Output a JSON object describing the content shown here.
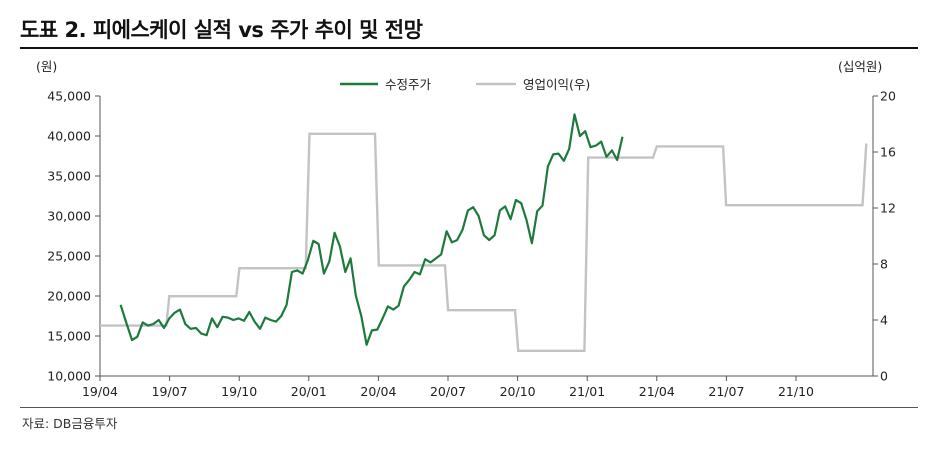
{
  "header": {
    "title": "도표 2. 피에스케이 실적 vs 주가 추이 및 전망"
  },
  "units": {
    "left": "(원)",
    "right": "(십억원)"
  },
  "source": "자료: DB금융투자",
  "colors": {
    "price": "#1e7a3c",
    "op": "#c3c3c3",
    "axis": "#555555"
  },
  "chart_data": {
    "type": "line",
    "x_ticks": [
      "19/04",
      "19/07",
      "19/10",
      "20/01",
      "20/04",
      "20/07",
      "20/10",
      "21/01",
      "21/04",
      "21/07",
      "21/10"
    ],
    "y_left": {
      "min": 10000,
      "max": 45000,
      "step": 5000,
      "ticks": [
        "10,000",
        "15,000",
        "20,000",
        "25,000",
        "30,000",
        "35,000",
        "40,000",
        "45,000"
      ]
    },
    "y_right": {
      "min": 0,
      "max": 20,
      "step": 4,
      "ticks": [
        "0",
        "4",
        "8",
        "12",
        "16",
        "20"
      ]
    },
    "series": [
      {
        "name": "수정주가",
        "axis": "left",
        "points": [
          [
            "2019-04-28",
            18900
          ],
          [
            "2019-05-06",
            16500
          ],
          [
            "2019-05-13",
            14500
          ],
          [
            "2019-05-20",
            14900
          ],
          [
            "2019-05-27",
            16700
          ],
          [
            "2019-06-03",
            16300
          ],
          [
            "2019-06-10",
            16500
          ],
          [
            "2019-06-17",
            17000
          ],
          [
            "2019-06-24",
            16000
          ],
          [
            "2019-07-01",
            17200
          ],
          [
            "2019-07-08",
            17900
          ],
          [
            "2019-07-15",
            18300
          ],
          [
            "2019-07-22",
            16500
          ],
          [
            "2019-07-29",
            15900
          ],
          [
            "2019-08-05",
            16000
          ],
          [
            "2019-08-12",
            15300
          ],
          [
            "2019-08-19",
            15100
          ],
          [
            "2019-08-26",
            17200
          ],
          [
            "2019-09-02",
            16100
          ],
          [
            "2019-09-09",
            17400
          ],
          [
            "2019-09-16",
            17300
          ],
          [
            "2019-09-23",
            17000
          ],
          [
            "2019-09-30",
            17200
          ],
          [
            "2019-10-07",
            16900
          ],
          [
            "2019-10-14",
            18000
          ],
          [
            "2019-10-21",
            16800
          ],
          [
            "2019-10-28",
            15900
          ],
          [
            "2019-11-04",
            17300
          ],
          [
            "2019-11-11",
            17000
          ],
          [
            "2019-11-18",
            16800
          ],
          [
            "2019-11-25",
            17500
          ],
          [
            "2019-12-02",
            18900
          ],
          [
            "2019-12-09",
            23000
          ],
          [
            "2019-12-16",
            23200
          ],
          [
            "2019-12-23",
            22800
          ],
          [
            "2019-12-30",
            24500
          ],
          [
            "2020-01-06",
            26900
          ],
          [
            "2020-01-13",
            26500
          ],
          [
            "2020-01-20",
            22800
          ],
          [
            "2020-01-27",
            24300
          ],
          [
            "2020-02-03",
            27900
          ],
          [
            "2020-02-10",
            26200
          ],
          [
            "2020-02-17",
            23000
          ],
          [
            "2020-02-24",
            24700
          ],
          [
            "2020-03-02",
            20000
          ],
          [
            "2020-03-09",
            17500
          ],
          [
            "2020-03-16",
            13900
          ],
          [
            "2020-03-23",
            15700
          ],
          [
            "2020-03-30",
            15800
          ],
          [
            "2020-04-06",
            17200
          ],
          [
            "2020-04-13",
            18700
          ],
          [
            "2020-04-20",
            18300
          ],
          [
            "2020-04-27",
            18800
          ],
          [
            "2020-05-04",
            21200
          ],
          [
            "2020-05-11",
            22000
          ],
          [
            "2020-05-18",
            23000
          ],
          [
            "2020-05-25",
            22700
          ],
          [
            "2020-06-01",
            24600
          ],
          [
            "2020-06-08",
            24200
          ],
          [
            "2020-06-15",
            24700
          ],
          [
            "2020-06-22",
            25200
          ],
          [
            "2020-06-29",
            28100
          ],
          [
            "2020-07-06",
            26700
          ],
          [
            "2020-07-13",
            27000
          ],
          [
            "2020-07-20",
            28300
          ],
          [
            "2020-07-27",
            30700
          ],
          [
            "2020-08-03",
            31100
          ],
          [
            "2020-08-10",
            30000
          ],
          [
            "2020-08-17",
            27600
          ],
          [
            "2020-08-24",
            27000
          ],
          [
            "2020-08-31",
            27600
          ],
          [
            "2020-09-07",
            30700
          ],
          [
            "2020-09-14",
            31200
          ],
          [
            "2020-09-21",
            29600
          ],
          [
            "2020-09-28",
            32000
          ],
          [
            "2020-10-05",
            31600
          ],
          [
            "2020-10-12",
            29500
          ],
          [
            "2020-10-19",
            26600
          ],
          [
            "2020-10-26",
            30600
          ],
          [
            "2020-11-02",
            31300
          ],
          [
            "2020-11-09",
            36200
          ],
          [
            "2020-11-16",
            37700
          ],
          [
            "2020-11-23",
            37800
          ],
          [
            "2020-11-30",
            36900
          ],
          [
            "2020-12-07",
            38400
          ],
          [
            "2020-12-14",
            42700
          ],
          [
            "2020-12-21",
            40000
          ],
          [
            "2020-12-28",
            40600
          ],
          [
            "2021-01-04",
            38600
          ],
          [
            "2021-01-11",
            38800
          ],
          [
            "2021-01-18",
            39300
          ],
          [
            "2021-01-25",
            37400
          ],
          [
            "2021-02-01",
            38200
          ],
          [
            "2021-02-08",
            37000
          ],
          [
            "2021-02-15",
            39900
          ]
        ]
      },
      {
        "name": "영업이익(우)",
        "axis": "right",
        "points": [
          [
            "2019-04-01",
            3.6
          ],
          [
            "2019-06-27",
            3.6
          ],
          [
            "2019-07-01",
            5.7
          ],
          [
            "2019-09-27",
            5.7
          ],
          [
            "2019-10-01",
            7.7
          ],
          [
            "2019-12-27",
            7.7
          ],
          [
            "2020-01-01",
            17.3
          ],
          [
            "2020-03-27",
            17.3
          ],
          [
            "2020-04-01",
            7.9
          ],
          [
            "2020-06-27",
            7.9
          ],
          [
            "2020-07-01",
            4.7
          ],
          [
            "2020-09-27",
            4.7
          ],
          [
            "2020-10-01",
            1.8
          ],
          [
            "2020-12-27",
            1.8
          ],
          [
            "2021-01-01",
            15.6
          ],
          [
            "2021-03-27",
            15.6
          ],
          [
            "2021-04-01",
            16.4
          ],
          [
            "2021-06-27",
            16.4
          ],
          [
            "2021-07-01",
            12.2
          ],
          [
            "2021-09-27",
            12.2
          ],
          [
            "2021-10-01",
            12.2
          ],
          [
            "2021-12-27",
            12.2
          ],
          [
            "2022-01-01",
            16.6
          ]
        ]
      }
    ],
    "legend": "top-center",
    "grid": false
  }
}
